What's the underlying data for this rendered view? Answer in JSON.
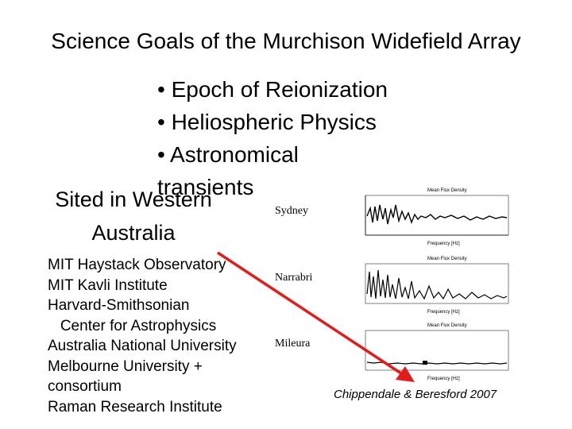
{
  "title": "Science Goals of the Murchison Widefield Array",
  "goals": [
    "• Epoch of Reionization",
    "• Heliospheric Physics",
    "• Astronomical",
    "transients"
  ],
  "sited": [
    "Sited in Western",
    "Australia"
  ],
  "partners": [
    "MIT Haystack Observatory",
    "MIT Kavli Institute",
    "Harvard-Smithsonian",
    "   Center for Astrophysics",
    "Australia National University",
    "Melbourne University +",
    "consortium",
    "Raman Research Institute"
  ],
  "sites": {
    "sydney": "Sydney",
    "narrabri": "Narrabri",
    "mileura": "Mileura"
  },
  "panels": {
    "title": "Mean Flux Density",
    "xlabel": "Frequency [Hz]"
  },
  "credit": "Chippendale & Beresford 2007",
  "colors": {
    "arrow": "#e31b1b"
  },
  "icons": {
    "arrow": "red-arrow-icon"
  }
}
